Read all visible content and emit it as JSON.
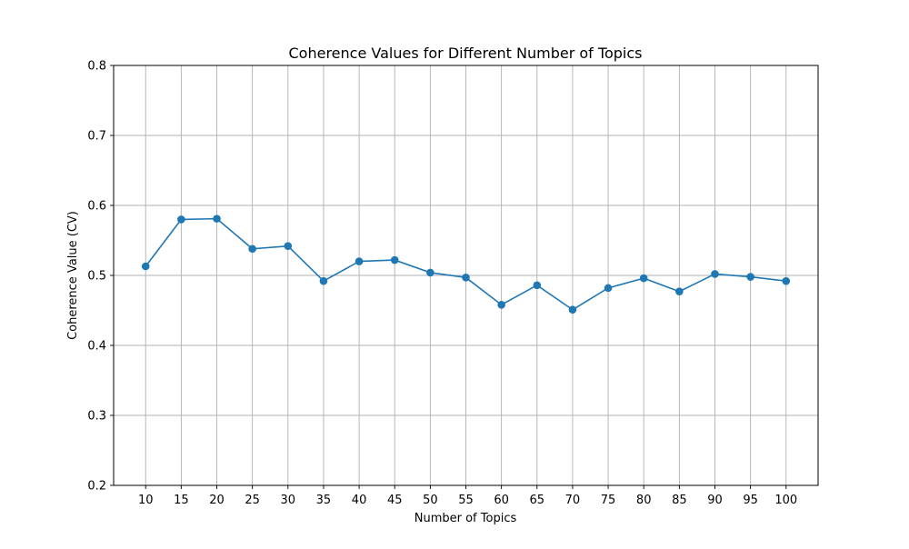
{
  "chart_data": {
    "type": "line",
    "title": "Coherence Values for Different Number of Topics",
    "xlabel": "Number of Topics",
    "ylabel": "Coherence Value (CV)",
    "x": [
      10,
      15,
      20,
      25,
      30,
      35,
      40,
      45,
      50,
      55,
      60,
      65,
      70,
      75,
      80,
      85,
      90,
      95,
      100
    ],
    "series": [
      {
        "values": [
          0.513,
          0.58,
          0.581,
          0.538,
          0.542,
          0.492,
          0.52,
          0.522,
          0.504,
          0.497,
          0.458,
          0.486,
          0.451,
          0.482,
          0.496,
          0.477,
          0.502,
          0.498,
          0.492
        ],
        "color": "#1f77b4",
        "marker": "circle"
      }
    ],
    "x_ticks": [
      "10",
      "15",
      "20",
      "25",
      "30",
      "35",
      "40",
      "45",
      "50",
      "55",
      "60",
      "65",
      "70",
      "75",
      "80",
      "85",
      "90",
      "95",
      "100"
    ],
    "y_ticks": [
      "0.2",
      "0.3",
      "0.4",
      "0.5",
      "0.6",
      "0.7",
      "0.8"
    ],
    "ylim": [
      0.2,
      0.8
    ],
    "xlim": [
      5.5,
      104.5
    ],
    "grid": true,
    "grid_color": "#b0b0b0"
  }
}
